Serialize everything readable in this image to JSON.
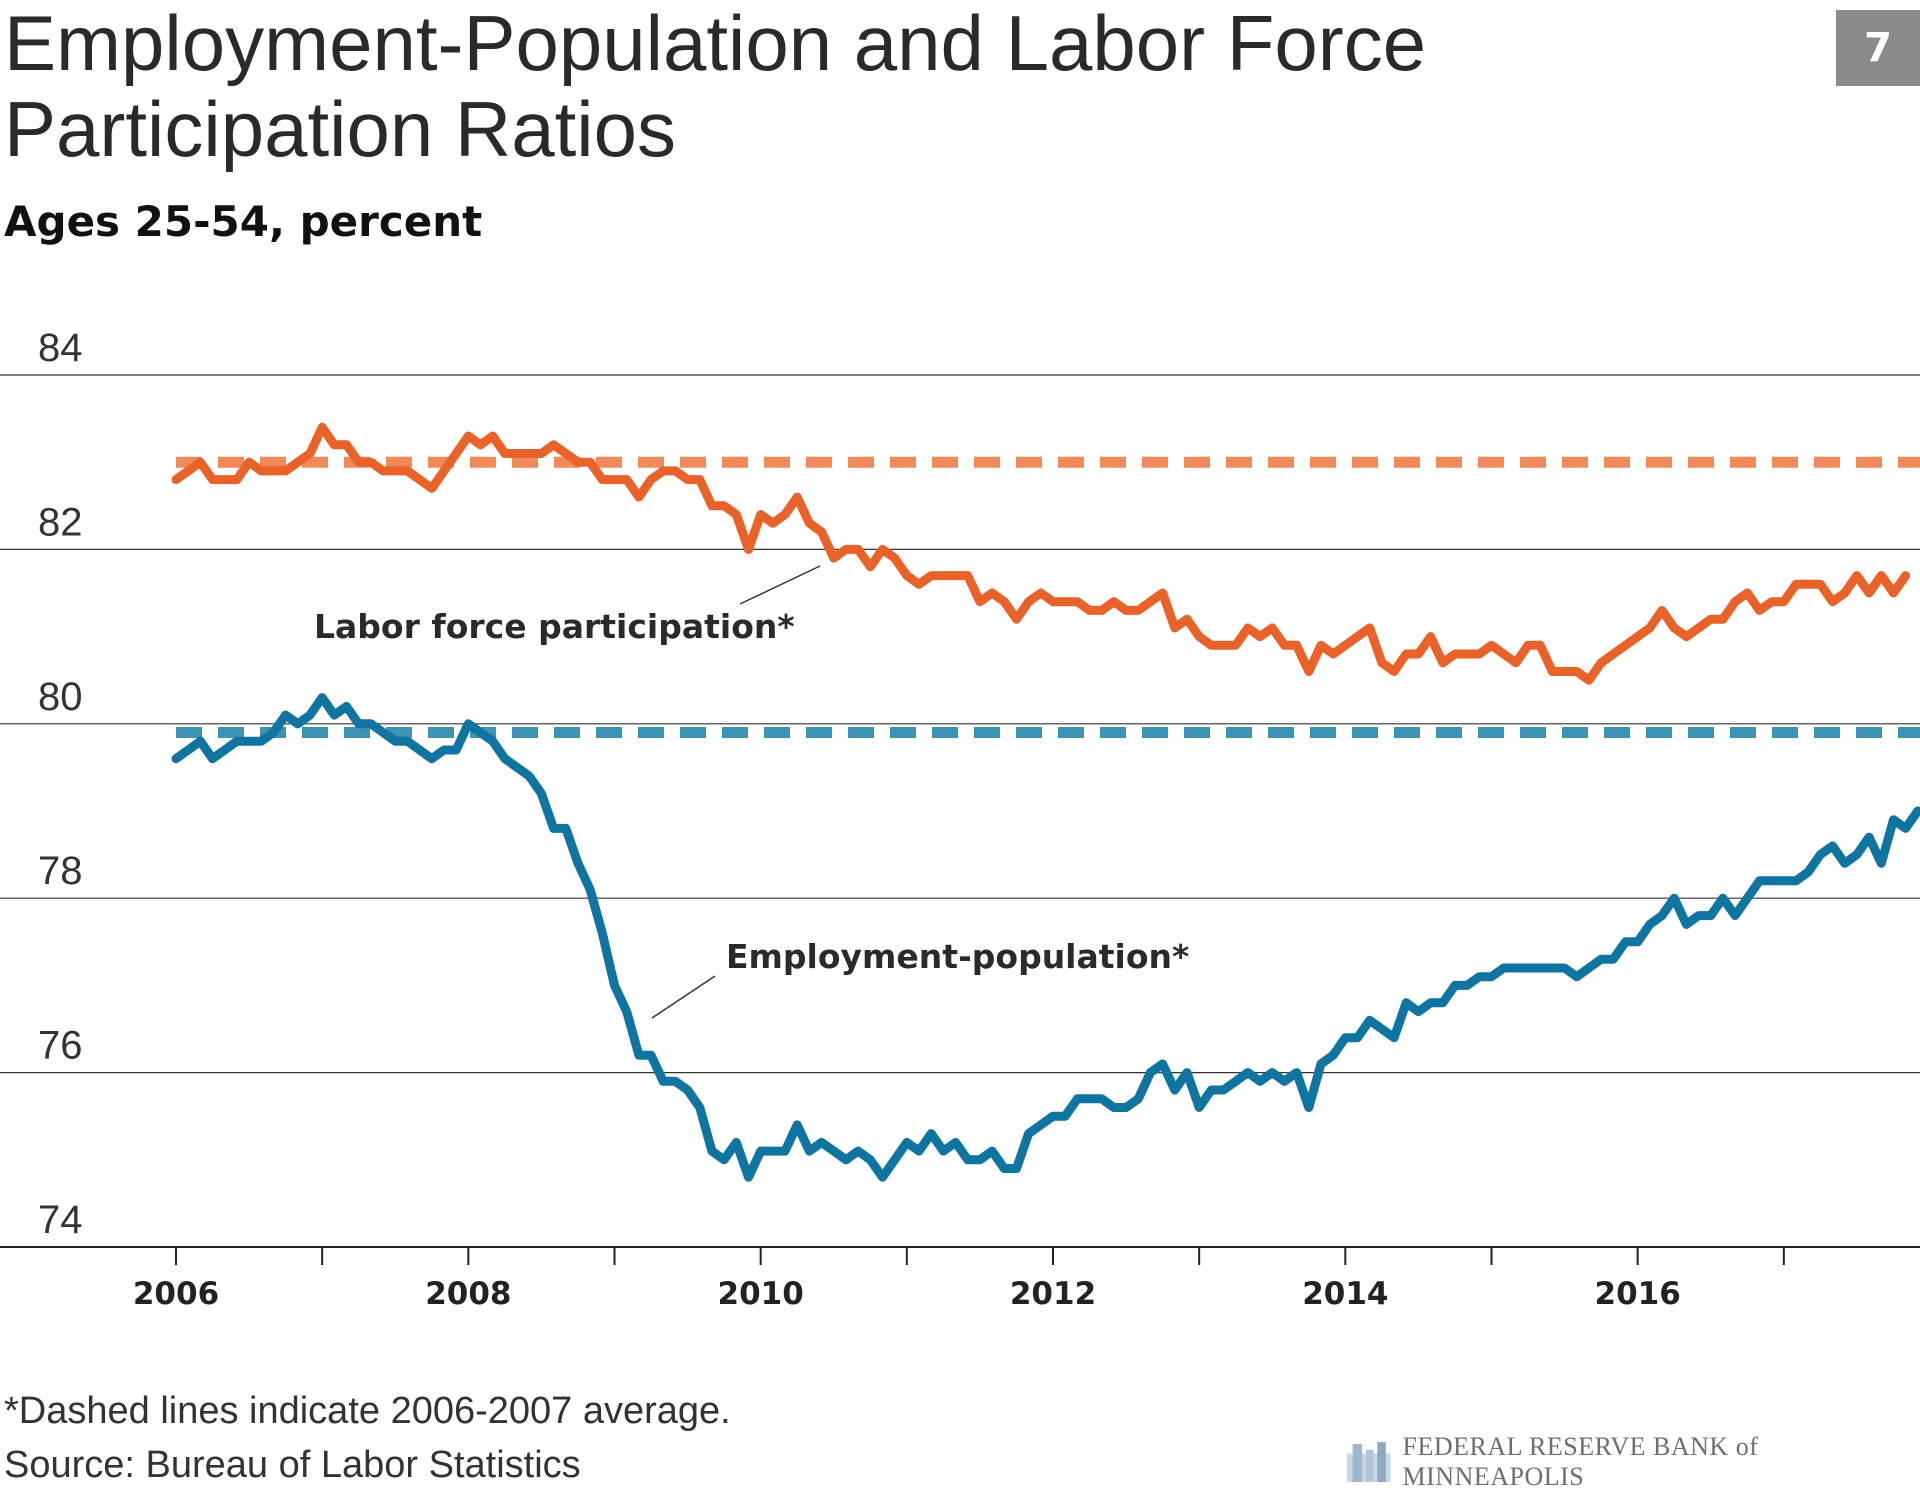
{
  "header": {
    "title": "Employment-Population and Labor Force Participation Ratios",
    "subtitle": "Ages 25-54, percent",
    "badge": "7"
  },
  "footer": {
    "note": "*Dashed lines indicate 2006-2007 average.",
    "source": "Source: Bureau of Labor Statistics",
    "logo_text": "FEDERAL RESERVE BANK of MINNEAPOLIS"
  },
  "colors": {
    "lfpr": "#e8622a",
    "lfpr_avg": "#f08a5a",
    "epop": "#0f74a0",
    "epop_avg": "#3d93b3",
    "grid": "#333333",
    "badge": "#8a8a8a"
  },
  "chart_data": {
    "type": "line",
    "title": "Employment-Population and Labor Force Participation Ratios",
    "subtitle": "Ages 25-54, percent",
    "xlabel": "",
    "ylabel": "",
    "ylim": [
      74,
      84
    ],
    "xlim": [
      2006,
      2018
    ],
    "yticks": [
      "74",
      "76",
      "78",
      "80",
      "82",
      "84"
    ],
    "xticks": [
      "2006",
      "2008",
      "2010",
      "2012",
      "2014",
      "2016"
    ],
    "grid": true,
    "frequency": "monthly, Jan 2006 start",
    "series": [
      {
        "name": "Labor force participation*",
        "start": "2006-01",
        "values": [
          82.8,
          82.9,
          83.0,
          82.8,
          82.8,
          82.8,
          83.0,
          82.9,
          82.9,
          82.9,
          83.0,
          83.1,
          83.4,
          83.2,
          83.2,
          83.0,
          83.0,
          82.9,
          82.9,
          82.9,
          82.8,
          82.7,
          82.9,
          83.1,
          83.3,
          83.2,
          83.3,
          83.1,
          83.1,
          83.1,
          83.1,
          83.2,
          83.1,
          83.0,
          83.0,
          82.8,
          82.8,
          82.8,
          82.6,
          82.8,
          82.9,
          82.9,
          82.8,
          82.8,
          82.5,
          82.5,
          82.4,
          82.0,
          82.4,
          82.3,
          82.4,
          82.6,
          82.3,
          82.2,
          81.9,
          82.0,
          82.0,
          81.8,
          82.0,
          81.9,
          81.7,
          81.6,
          81.7,
          81.7,
          81.7,
          81.7,
          81.4,
          81.5,
          81.4,
          81.2,
          81.4,
          81.5,
          81.4,
          81.4,
          81.4,
          81.3,
          81.3,
          81.4,
          81.3,
          81.3,
          81.4,
          81.5,
          81.1,
          81.2,
          81.0,
          80.9,
          80.9,
          80.9,
          81.1,
          81.0,
          81.1,
          80.9,
          80.9,
          80.6,
          80.9,
          80.8,
          80.9,
          81.0,
          81.1,
          80.7,
          80.6,
          80.8,
          80.8,
          81.0,
          80.7,
          80.8,
          80.8,
          80.8,
          80.9,
          80.8,
          80.7,
          80.9,
          80.9,
          80.6,
          80.6,
          80.6,
          80.5,
          80.7,
          80.8,
          80.9,
          81.0,
          81.1,
          81.3,
          81.1,
          81.0,
          81.1,
          81.2,
          81.2,
          81.4,
          81.5,
          81.3,
          81.4,
          81.4,
          81.6,
          81.6,
          81.6,
          81.4,
          81.5,
          81.7,
          81.5,
          81.7,
          81.5,
          81.7
        ]
      },
      {
        "name": "Employment-population*",
        "start": "2006-01",
        "values": [
          79.6,
          79.7,
          79.8,
          79.6,
          79.7,
          79.8,
          79.8,
          79.8,
          79.9,
          80.1,
          80.0,
          80.1,
          80.3,
          80.1,
          80.2,
          80.0,
          80.0,
          79.9,
          79.8,
          79.8,
          79.7,
          79.6,
          79.7,
          79.7,
          80.0,
          79.9,
          79.8,
          79.6,
          79.5,
          79.4,
          79.2,
          78.8,
          78.8,
          78.4,
          78.1,
          77.6,
          77.0,
          76.7,
          76.2,
          76.2,
          75.9,
          75.9,
          75.8,
          75.6,
          75.1,
          75.0,
          75.2,
          74.8,
          75.1,
          75.1,
          75.1,
          75.4,
          75.1,
          75.2,
          75.1,
          75.0,
          75.1,
          75.0,
          74.8,
          75.0,
          75.2,
          75.1,
          75.3,
          75.1,
          75.2,
          75.0,
          75.0,
          75.1,
          74.9,
          74.9,
          75.3,
          75.4,
          75.5,
          75.5,
          75.7,
          75.7,
          75.7,
          75.6,
          75.6,
          75.7,
          76.0,
          76.1,
          75.8,
          76.0,
          75.6,
          75.8,
          75.8,
          75.9,
          76.0,
          75.9,
          76.0,
          75.9,
          76.0,
          75.6,
          76.1,
          76.2,
          76.4,
          76.4,
          76.6,
          76.5,
          76.4,
          76.8,
          76.7,
          76.8,
          76.8,
          77.0,
          77.0,
          77.1,
          77.1,
          77.2,
          77.2,
          77.2,
          77.2,
          77.2,
          77.2,
          77.1,
          77.2,
          77.3,
          77.3,
          77.5,
          77.5,
          77.7,
          77.8,
          78.0,
          77.7,
          77.8,
          77.8,
          78.0,
          77.8,
          78.0,
          78.2,
          78.2,
          78.2,
          78.2,
          78.3,
          78.5,
          78.6,
          78.4,
          78.5,
          78.7,
          78.4,
          78.9,
          78.8,
          79.0
        ]
      },
      {
        "name": "",
        "note": "2006-2007 average, labor force participation (dashed)",
        "value": 83.0
      },
      {
        "name": "",
        "note": "2006-2007 average, employment-population (dashed)",
        "value": 79.9
      }
    ],
    "annotations": [
      "Labor force participation*",
      "Employment-population*"
    ]
  }
}
